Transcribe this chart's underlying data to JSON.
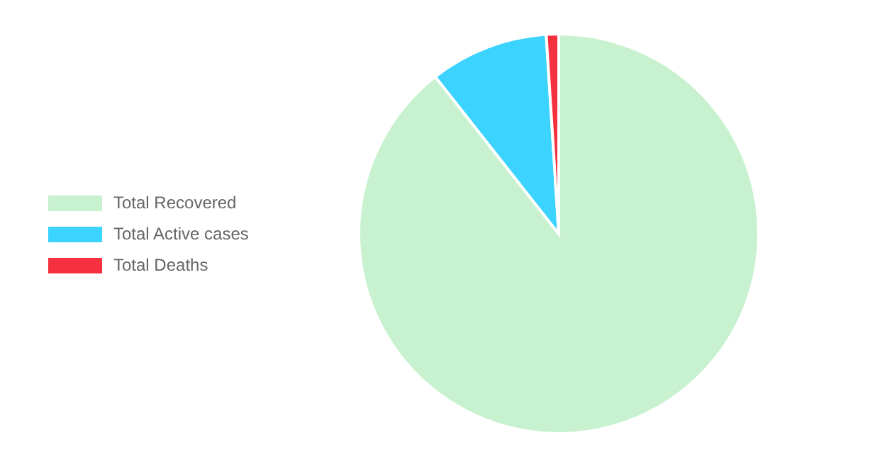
{
  "chart_data": {
    "type": "pie",
    "categories": [
      "Total Recovered",
      "Total Active cases",
      "Total Deaths"
    ],
    "values": [
      89.4,
      9.6,
      1.0
    ],
    "colors": [
      "#c8f2cf",
      "#3cd3ff",
      "#f5313f"
    ],
    "legend": "left"
  }
}
